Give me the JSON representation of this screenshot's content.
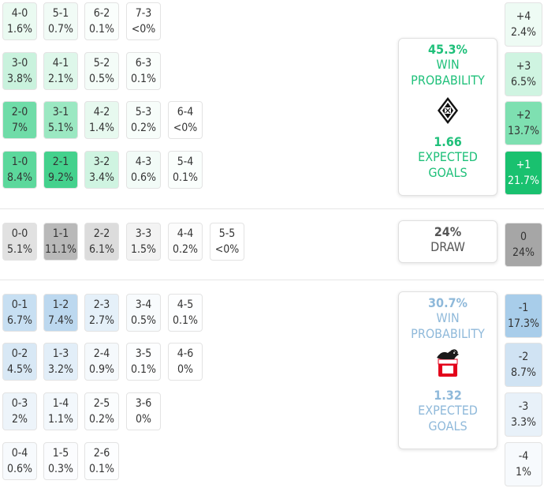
{
  "home": {
    "win_prob": "45.3%",
    "win_label": "WIN\nPROBABILITY",
    "xg": "1.66",
    "xg_label": "EXPECTED\nGOALS",
    "color": "#1fc07a",
    "scores": [
      {
        "score": "4-0",
        "p": "1.6%",
        "col": 0,
        "row": 0,
        "shade": "#eafaf1"
      },
      {
        "score": "5-1",
        "p": "0.7%",
        "col": 1,
        "row": 0,
        "shade": "#f1fbf6"
      },
      {
        "score": "6-2",
        "p": "0.1%",
        "col": 2,
        "row": 0,
        "shade": "#fafefc"
      },
      {
        "score": "7-3",
        "p": "<0%",
        "col": 3,
        "row": 0,
        "shade": "#ffffff"
      },
      {
        "score": "3-0",
        "p": "3.8%",
        "col": 0,
        "row": 1,
        "shade": "#c9f2dd"
      },
      {
        "score": "4-1",
        "p": "2.1%",
        "col": 1,
        "row": 1,
        "shade": "#def7ea"
      },
      {
        "score": "5-2",
        "p": "0.5%",
        "col": 2,
        "row": 1,
        "shade": "#f4fcf8"
      },
      {
        "score": "6-3",
        "p": "0.1%",
        "col": 3,
        "row": 1,
        "shade": "#fafefc"
      },
      {
        "score": "2-0",
        "p": "7%",
        "col": 0,
        "row": 2,
        "shade": "#6fdca8"
      },
      {
        "score": "3-1",
        "p": "5.1%",
        "col": 1,
        "row": 2,
        "shade": "#9be8c2"
      },
      {
        "score": "4-2",
        "p": "1.4%",
        "col": 2,
        "row": 2,
        "shade": "#e7f9ef"
      },
      {
        "score": "5-3",
        "p": "0.2%",
        "col": 3,
        "row": 2,
        "shade": "#f7fdfa"
      },
      {
        "score": "6-4",
        "p": "<0%",
        "col": 4,
        "row": 2,
        "shade": "#ffffff"
      },
      {
        "score": "1-0",
        "p": "8.4%",
        "col": 0,
        "row": 3,
        "shade": "#5cd89c"
      },
      {
        "score": "2-1",
        "p": "9.2%",
        "col": 1,
        "row": 3,
        "shade": "#44d18d"
      },
      {
        "score": "3-2",
        "p": "3.4%",
        "col": 2,
        "row": 3,
        "shade": "#cff4e1"
      },
      {
        "score": "4-3",
        "p": "0.6%",
        "col": 3,
        "row": 3,
        "shade": "#f2fbf7"
      },
      {
        "score": "5-4",
        "p": "0.1%",
        "col": 4,
        "row": 3,
        "shade": "#fafefc"
      }
    ],
    "margins": [
      {
        "m": "+4",
        "p": "2.4%",
        "shade": "#eefbf4"
      },
      {
        "m": "+3",
        "p": "6.5%",
        "shade": "#cff4e1"
      },
      {
        "m": "+2",
        "p": "13.7%",
        "shade": "#7ee0b1"
      },
      {
        "m": "+1",
        "p": "21.7%",
        "shade": "#19c16f"
      }
    ]
  },
  "draw": {
    "prob": "24%",
    "label": "DRAW",
    "scores": [
      {
        "score": "0-0",
        "p": "5.1%",
        "col": 0,
        "shade": "#e1e1e1"
      },
      {
        "score": "1-1",
        "p": "11.1%",
        "col": 1,
        "shade": "#b9b9b9"
      },
      {
        "score": "2-2",
        "p": "6.1%",
        "col": 2,
        "shade": "#dcdcdc"
      },
      {
        "score": "3-3",
        "p": "1.5%",
        "col": 3,
        "shade": "#f3f3f3"
      },
      {
        "score": "4-4",
        "p": "0.2%",
        "col": 4,
        "shade": "#fcfcfc"
      },
      {
        "score": "5-5",
        "p": "<0%",
        "col": 5,
        "shade": "#ffffff"
      }
    ],
    "margin": {
      "m": "0",
      "p": "24%",
      "shade": "#a6a6a6"
    }
  },
  "away": {
    "win_prob": "30.7%",
    "win_label": "WIN\nPROBABILITY",
    "xg": "1.32",
    "xg_label": "EXPECTED\nGOALS",
    "color": "#8fb9da",
    "scores": [
      {
        "score": "0-1",
        "p": "6.7%",
        "col": 0,
        "row": 0,
        "shade": "#c7dff2"
      },
      {
        "score": "1-2",
        "p": "7.4%",
        "col": 1,
        "row": 0,
        "shade": "#bcd8ef"
      },
      {
        "score": "2-3",
        "p": "2.7%",
        "col": 2,
        "row": 0,
        "shade": "#e5f0f9"
      },
      {
        "score": "3-4",
        "p": "0.5%",
        "col": 3,
        "row": 0,
        "shade": "#f8fbfd"
      },
      {
        "score": "4-5",
        "p": "0.1%",
        "col": 4,
        "row": 0,
        "shade": "#fdfeff"
      },
      {
        "score": "0-2",
        "p": "4.5%",
        "col": 0,
        "row": 1,
        "shade": "#d8e8f5"
      },
      {
        "score": "1-3",
        "p": "3.2%",
        "col": 1,
        "row": 1,
        "shade": "#e2eef8"
      },
      {
        "score": "2-4",
        "p": "0.9%",
        "col": 2,
        "row": 1,
        "shade": "#f5f9fc"
      },
      {
        "score": "3-5",
        "p": "0.1%",
        "col": 3,
        "row": 1,
        "shade": "#fdfeff"
      },
      {
        "score": "4-6",
        "p": "0%",
        "col": 4,
        "row": 1,
        "shade": "#ffffff"
      },
      {
        "score": "0-3",
        "p": "2%",
        "col": 0,
        "row": 2,
        "shade": "#edf4fa"
      },
      {
        "score": "1-4",
        "p": "1.1%",
        "col": 1,
        "row": 2,
        "shade": "#f3f8fc"
      },
      {
        "score": "2-5",
        "p": "0.2%",
        "col": 2,
        "row": 2,
        "shade": "#fbfdfe"
      },
      {
        "score": "3-6",
        "p": "0%",
        "col": 3,
        "row": 2,
        "shade": "#ffffff"
      },
      {
        "score": "0-4",
        "p": "0.6%",
        "col": 0,
        "row": 3,
        "shade": "#f7fafd"
      },
      {
        "score": "1-5",
        "p": "0.3%",
        "col": 1,
        "row": 3,
        "shade": "#fbfcfe"
      },
      {
        "score": "2-6",
        "p": "0.1%",
        "col": 2,
        "row": 3,
        "shade": "#fdfeff"
      }
    ],
    "margins": [
      {
        "m": "-1",
        "p": "17.3%",
        "shade": "#a8cdea"
      },
      {
        "m": "-2",
        "p": "8.7%",
        "shade": "#d0e3f3"
      },
      {
        "m": "-3",
        "p": "3.3%",
        "shade": "#e8f1f9"
      },
      {
        "m": "-4",
        "p": "1%",
        "shade": "#f7fafd"
      }
    ]
  },
  "icons": {
    "home_crest": "gladbach-crest-icon",
    "away_crest": "koln-crest-icon"
  }
}
